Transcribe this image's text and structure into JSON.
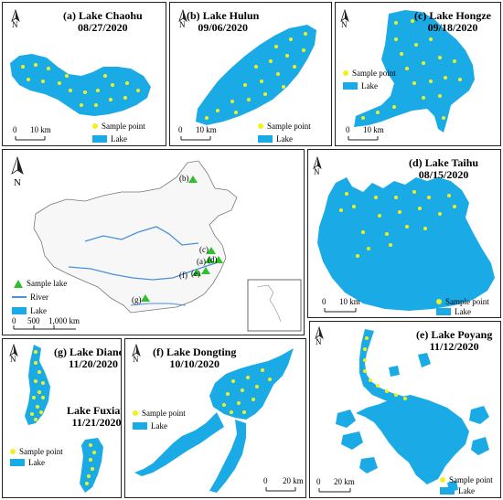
{
  "colors": {
    "lake": "#1aabe6",
    "sample_point": "#f2f21a",
    "sample_lake": "#2fbf2f",
    "river": "#4a90d9",
    "border": "#222222"
  },
  "icons": {
    "north_arrow": "north-arrow-icon"
  },
  "north_label": "N",
  "legend_sample_point": "Sample point",
  "legend_lake": "Lake",
  "panels": {
    "chaohu": {
      "name": "(a) Lake Chaohu",
      "date": "08/27/2020",
      "scale_0": "0",
      "scale_dist": "10 km"
    },
    "hulun": {
      "name": "(b) Lake Hulun",
      "date": "09/06/2020",
      "scale_0": "0",
      "scale_dist": "10 km"
    },
    "hongze": {
      "name": "(c) Lake Hongze",
      "date": "09/18/2020",
      "scale_0": "0",
      "scale_dist": "10 km"
    },
    "china": {
      "legend_sample_lake": "Sample lake",
      "legend_river": "River",
      "legend_lake": "Lake",
      "scale_0": "0",
      "scale_500": "500",
      "scale_1000": "1,000 km",
      "labels": [
        "(b)",
        "(c)",
        "(d)",
        "(a)",
        "(e)",
        "(f)",
        "(g)"
      ]
    },
    "taihu": {
      "name": "(d) Lake Taihu",
      "date": "08/15/2020",
      "scale_0": "0",
      "scale_dist": "10 km"
    },
    "dianchi": {
      "name": "(g) Lake Dianchi",
      "date": "11/20/2020",
      "name2": "Lake Fuxian",
      "date2": "11/21/2020"
    },
    "dongting": {
      "name": "(f) Lake Dongting",
      "date": "10/10/2020",
      "scale_0": "0",
      "scale_dist": "20 km"
    },
    "poyang": {
      "name": "(e) Lake Poyang",
      "date": "11/12/2020",
      "scale_0": "0",
      "scale_dist": "20 km"
    }
  }
}
